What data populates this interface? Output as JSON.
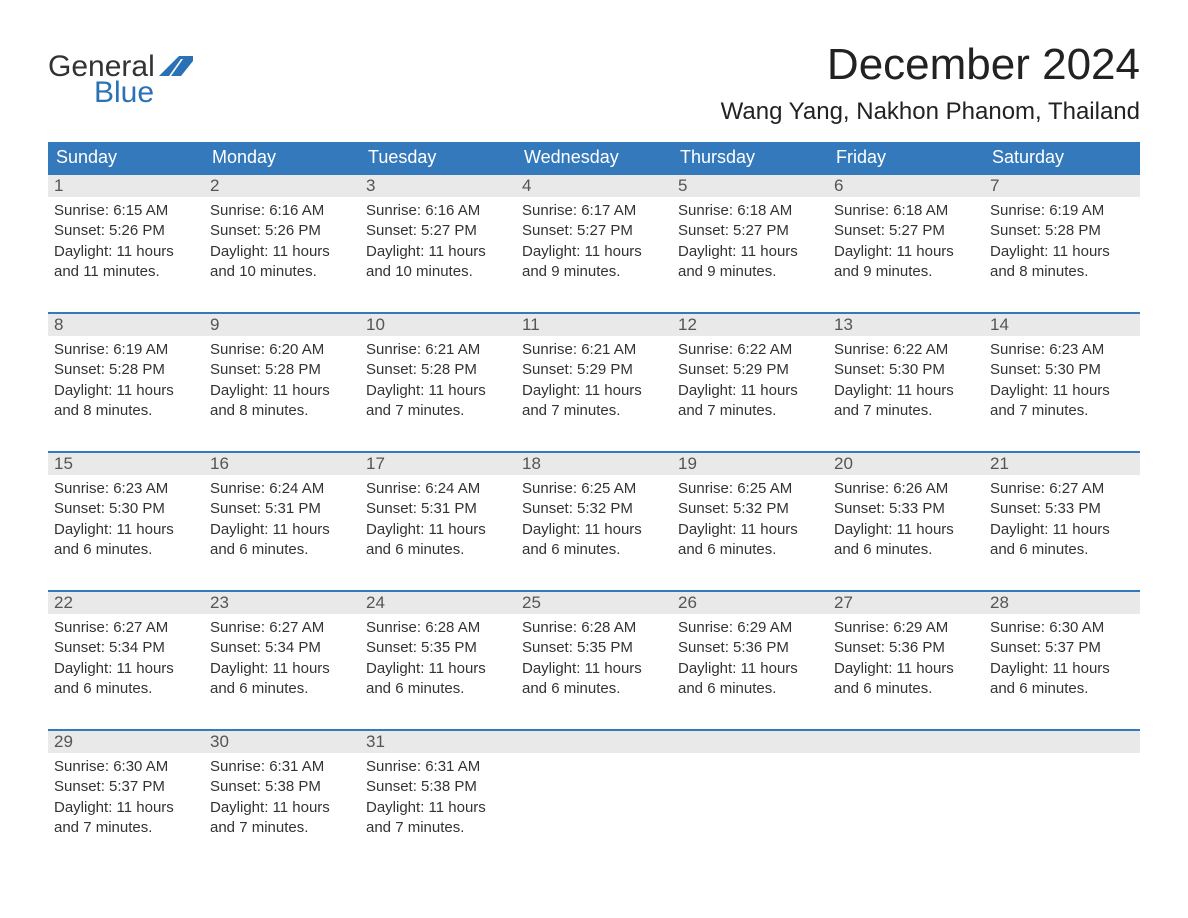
{
  "brand": {
    "word1": "General",
    "word2": "Blue",
    "text_color": "#333333",
    "accent_color": "#2a72b5",
    "flag_color": "#2a72b5"
  },
  "title": "December 2024",
  "location": "Wang Yang, Nakhon Phanom, Thailand",
  "colors": {
    "header_bg": "#3479bc",
    "header_text": "#ffffff",
    "daynum_bg": "#e9e9e9",
    "daynum_text": "#555555",
    "body_text": "#333333",
    "week_border": "#3479bc",
    "page_bg": "#ffffff"
  },
  "typography": {
    "title_fontsize": 44,
    "location_fontsize": 24,
    "header_fontsize": 18,
    "daynum_fontsize": 17,
    "body_fontsize": 15
  },
  "day_labels": [
    "Sunday",
    "Monday",
    "Tuesday",
    "Wednesday",
    "Thursday",
    "Friday",
    "Saturday"
  ],
  "weeks": [
    {
      "days": [
        {
          "n": "1",
          "sunrise": "Sunrise: 6:15 AM",
          "sunset": "Sunset: 5:26 PM",
          "d1": "Daylight: 11 hours",
          "d2": "and 11 minutes."
        },
        {
          "n": "2",
          "sunrise": "Sunrise: 6:16 AM",
          "sunset": "Sunset: 5:26 PM",
          "d1": "Daylight: 11 hours",
          "d2": "and 10 minutes."
        },
        {
          "n": "3",
          "sunrise": "Sunrise: 6:16 AM",
          "sunset": "Sunset: 5:27 PM",
          "d1": "Daylight: 11 hours",
          "d2": "and 10 minutes."
        },
        {
          "n": "4",
          "sunrise": "Sunrise: 6:17 AM",
          "sunset": "Sunset: 5:27 PM",
          "d1": "Daylight: 11 hours",
          "d2": "and 9 minutes."
        },
        {
          "n": "5",
          "sunrise": "Sunrise: 6:18 AM",
          "sunset": "Sunset: 5:27 PM",
          "d1": "Daylight: 11 hours",
          "d2": "and 9 minutes."
        },
        {
          "n": "6",
          "sunrise": "Sunrise: 6:18 AM",
          "sunset": "Sunset: 5:27 PM",
          "d1": "Daylight: 11 hours",
          "d2": "and 9 minutes."
        },
        {
          "n": "7",
          "sunrise": "Sunrise: 6:19 AM",
          "sunset": "Sunset: 5:28 PM",
          "d1": "Daylight: 11 hours",
          "d2": "and 8 minutes."
        }
      ]
    },
    {
      "days": [
        {
          "n": "8",
          "sunrise": "Sunrise: 6:19 AM",
          "sunset": "Sunset: 5:28 PM",
          "d1": "Daylight: 11 hours",
          "d2": "and 8 minutes."
        },
        {
          "n": "9",
          "sunrise": "Sunrise: 6:20 AM",
          "sunset": "Sunset: 5:28 PM",
          "d1": "Daylight: 11 hours",
          "d2": "and 8 minutes."
        },
        {
          "n": "10",
          "sunrise": "Sunrise: 6:21 AM",
          "sunset": "Sunset: 5:28 PM",
          "d1": "Daylight: 11 hours",
          "d2": "and 7 minutes."
        },
        {
          "n": "11",
          "sunrise": "Sunrise: 6:21 AM",
          "sunset": "Sunset: 5:29 PM",
          "d1": "Daylight: 11 hours",
          "d2": "and 7 minutes."
        },
        {
          "n": "12",
          "sunrise": "Sunrise: 6:22 AM",
          "sunset": "Sunset: 5:29 PM",
          "d1": "Daylight: 11 hours",
          "d2": "and 7 minutes."
        },
        {
          "n": "13",
          "sunrise": "Sunrise: 6:22 AM",
          "sunset": "Sunset: 5:30 PM",
          "d1": "Daylight: 11 hours",
          "d2": "and 7 minutes."
        },
        {
          "n": "14",
          "sunrise": "Sunrise: 6:23 AM",
          "sunset": "Sunset: 5:30 PM",
          "d1": "Daylight: 11 hours",
          "d2": "and 7 minutes."
        }
      ]
    },
    {
      "days": [
        {
          "n": "15",
          "sunrise": "Sunrise: 6:23 AM",
          "sunset": "Sunset: 5:30 PM",
          "d1": "Daylight: 11 hours",
          "d2": "and 6 minutes."
        },
        {
          "n": "16",
          "sunrise": "Sunrise: 6:24 AM",
          "sunset": "Sunset: 5:31 PM",
          "d1": "Daylight: 11 hours",
          "d2": "and 6 minutes."
        },
        {
          "n": "17",
          "sunrise": "Sunrise: 6:24 AM",
          "sunset": "Sunset: 5:31 PM",
          "d1": "Daylight: 11 hours",
          "d2": "and 6 minutes."
        },
        {
          "n": "18",
          "sunrise": "Sunrise: 6:25 AM",
          "sunset": "Sunset: 5:32 PM",
          "d1": "Daylight: 11 hours",
          "d2": "and 6 minutes."
        },
        {
          "n": "19",
          "sunrise": "Sunrise: 6:25 AM",
          "sunset": "Sunset: 5:32 PM",
          "d1": "Daylight: 11 hours",
          "d2": "and 6 minutes."
        },
        {
          "n": "20",
          "sunrise": "Sunrise: 6:26 AM",
          "sunset": "Sunset: 5:33 PM",
          "d1": "Daylight: 11 hours",
          "d2": "and 6 minutes."
        },
        {
          "n": "21",
          "sunrise": "Sunrise: 6:27 AM",
          "sunset": "Sunset: 5:33 PM",
          "d1": "Daylight: 11 hours",
          "d2": "and 6 minutes."
        }
      ]
    },
    {
      "days": [
        {
          "n": "22",
          "sunrise": "Sunrise: 6:27 AM",
          "sunset": "Sunset: 5:34 PM",
          "d1": "Daylight: 11 hours",
          "d2": "and 6 minutes."
        },
        {
          "n": "23",
          "sunrise": "Sunrise: 6:27 AM",
          "sunset": "Sunset: 5:34 PM",
          "d1": "Daylight: 11 hours",
          "d2": "and 6 minutes."
        },
        {
          "n": "24",
          "sunrise": "Sunrise: 6:28 AM",
          "sunset": "Sunset: 5:35 PM",
          "d1": "Daylight: 11 hours",
          "d2": "and 6 minutes."
        },
        {
          "n": "25",
          "sunrise": "Sunrise: 6:28 AM",
          "sunset": "Sunset: 5:35 PM",
          "d1": "Daylight: 11 hours",
          "d2": "and 6 minutes."
        },
        {
          "n": "26",
          "sunrise": "Sunrise: 6:29 AM",
          "sunset": "Sunset: 5:36 PM",
          "d1": "Daylight: 11 hours",
          "d2": "and 6 minutes."
        },
        {
          "n": "27",
          "sunrise": "Sunrise: 6:29 AM",
          "sunset": "Sunset: 5:36 PM",
          "d1": "Daylight: 11 hours",
          "d2": "and 6 minutes."
        },
        {
          "n": "28",
          "sunrise": "Sunrise: 6:30 AM",
          "sunset": "Sunset: 5:37 PM",
          "d1": "Daylight: 11 hours",
          "d2": "and 6 minutes."
        }
      ]
    },
    {
      "days": [
        {
          "n": "29",
          "sunrise": "Sunrise: 6:30 AM",
          "sunset": "Sunset: 5:37 PM",
          "d1": "Daylight: 11 hours",
          "d2": "and 7 minutes."
        },
        {
          "n": "30",
          "sunrise": "Sunrise: 6:31 AM",
          "sunset": "Sunset: 5:38 PM",
          "d1": "Daylight: 11 hours",
          "d2": "and 7 minutes."
        },
        {
          "n": "31",
          "sunrise": "Sunrise: 6:31 AM",
          "sunset": "Sunset: 5:38 PM",
          "d1": "Daylight: 11 hours",
          "d2": "and 7 minutes."
        },
        {
          "n": "",
          "sunrise": "",
          "sunset": "",
          "d1": "",
          "d2": ""
        },
        {
          "n": "",
          "sunrise": "",
          "sunset": "",
          "d1": "",
          "d2": ""
        },
        {
          "n": "",
          "sunrise": "",
          "sunset": "",
          "d1": "",
          "d2": ""
        },
        {
          "n": "",
          "sunrise": "",
          "sunset": "",
          "d1": "",
          "d2": ""
        }
      ]
    }
  ]
}
